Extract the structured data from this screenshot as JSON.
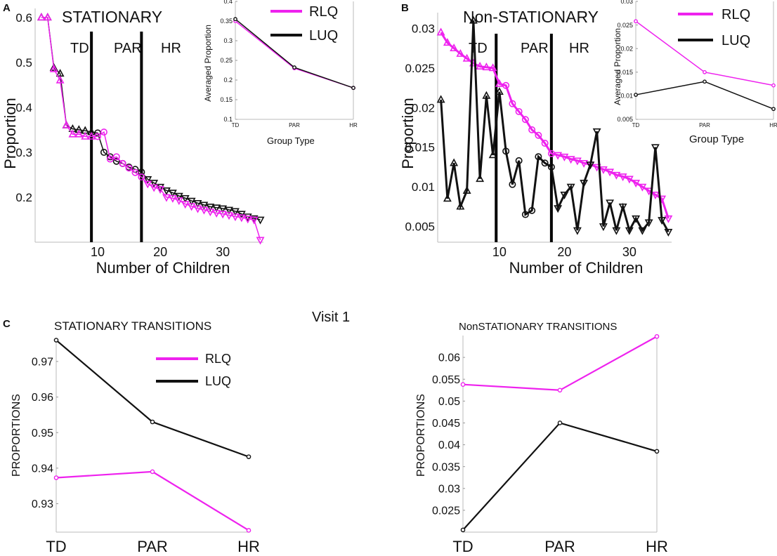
{
  "panel_labels": {
    "a": "A",
    "b": "B",
    "c": "C"
  },
  "figure_title": "Visit 1",
  "colors": {
    "rlq": "#ee22ee",
    "luq": "#111111",
    "axis": "#bbbbbb"
  },
  "chart_data": [
    {
      "id": "A-main",
      "type": "line",
      "title": "STATIONARY",
      "xlabel": "Number of Children",
      "ylabel": "Proportion",
      "xlim": [
        0,
        36.5
      ],
      "ylim": [
        0.1,
        0.62
      ],
      "xticks": [
        10,
        20,
        30
      ],
      "yticks": [
        0.2,
        0.3,
        0.4,
        0.5,
        0.6
      ],
      "ytick_labels": [
        "0.2",
        "0.3",
        "0.4",
        "0.5",
        "0.6"
      ],
      "group_labels": [
        "TD",
        "PAR",
        "HR"
      ],
      "group_boundaries": [
        9,
        17
      ],
      "x": [
        1,
        2,
        3,
        4,
        5,
        6,
        7,
        8,
        9,
        10,
        11,
        12,
        13,
        14,
        15,
        16,
        17,
        18,
        19,
        20,
        21,
        22,
        23,
        24,
        25,
        26,
        27,
        28,
        29,
        30,
        31,
        32,
        33,
        34,
        35,
        36
      ],
      "series": [
        {
          "name": "LUQ",
          "values": [
            0.6,
            0.6,
            0.488,
            0.475,
            0.36,
            0.352,
            0.35,
            0.348,
            0.345,
            0.343,
            0.3,
            0.29,
            0.28,
            0.275,
            0.267,
            0.262,
            0.256,
            0.24,
            0.232,
            0.223,
            0.215,
            0.21,
            0.203,
            0.198,
            0.192,
            0.187,
            0.183,
            0.179,
            0.177,
            0.175,
            0.172,
            0.169,
            0.163,
            0.157,
            0.153,
            0.15
          ]
        },
        {
          "name": "RLQ",
          "values": [
            0.6,
            0.6,
            0.485,
            0.46,
            0.36,
            0.34,
            0.34,
            0.335,
            0.335,
            0.335,
            0.345,
            0.285,
            0.29,
            0.275,
            0.265,
            0.255,
            0.245,
            0.23,
            0.222,
            0.218,
            0.2,
            0.198,
            0.193,
            0.185,
            0.18,
            0.175,
            0.172,
            0.168,
            0.165,
            0.163,
            0.16,
            0.157,
            0.155,
            0.152,
            0.15,
            0.105
          ]
        }
      ]
    },
    {
      "id": "A-inset",
      "type": "line",
      "xlabel": "Group Type",
      "ylabel": "Averaged Proportion",
      "categories": [
        "TD",
        "PAR",
        "HR"
      ],
      "ylim": [
        0.1,
        0.4
      ],
      "yticks": [
        0.1,
        0.15,
        0.2,
        0.25,
        0.3,
        0.35,
        0.4
      ],
      "ytick_labels": [
        "0.1",
        "0.15",
        "0.2",
        "0.25",
        "0.3",
        "0.35",
        "0.4"
      ],
      "series": [
        {
          "name": "RLQ",
          "values": [
            0.35,
            0.23,
            0.18
          ]
        },
        {
          "name": "LUQ",
          "values": [
            0.355,
            0.232,
            0.18
          ]
        }
      ]
    },
    {
      "id": "B-main",
      "type": "line",
      "title": "Non-STATIONARY",
      "xlabel": "Number of Children",
      "ylabel": "Proportion",
      "xlim": [
        0.5,
        36.5
      ],
      "ylim": [
        0.003,
        0.032
      ],
      "xticks": [
        10,
        20,
        30
      ],
      "yticks": [
        0.005,
        0.01,
        0.015,
        0.02,
        0.025,
        0.03
      ],
      "ytick_labels": [
        "0.005",
        "0.01",
        "0.015",
        "0.02",
        "0.025",
        "0.03"
      ],
      "group_labels": [
        "TD",
        "PAR",
        "HR"
      ],
      "group_boundaries": [
        9.5,
        18
      ],
      "x": [
        1,
        2,
        3,
        4,
        5,
        6,
        7,
        8,
        9,
        10,
        11,
        12,
        13,
        14,
        15,
        16,
        17,
        18,
        19,
        20,
        21,
        22,
        23,
        24,
        25,
        26,
        27,
        28,
        29,
        30,
        31,
        32,
        33,
        34,
        35,
        36
      ],
      "series": [
        {
          "name": "RLQ",
          "values": [
            0.0295,
            0.0282,
            0.0275,
            0.0268,
            0.0262,
            0.0256,
            0.0252,
            0.0251,
            0.025,
            0.023,
            0.0228,
            0.0205,
            0.0195,
            0.0185,
            0.0172,
            0.0165,
            0.0155,
            0.0142,
            0.014,
            0.0138,
            0.0135,
            0.0133,
            0.013,
            0.0128,
            0.0125,
            0.0122,
            0.0119,
            0.0115,
            0.0113,
            0.011,
            0.0105,
            0.01,
            0.0095,
            0.009,
            0.0085,
            0.006
          ]
        },
        {
          "name": "LUQ",
          "values": [
            0.021,
            0.0085,
            0.013,
            0.0075,
            0.0095,
            0.031,
            0.011,
            0.0215,
            0.014,
            0.022,
            0.0145,
            0.0103,
            0.0133,
            0.0065,
            0.007,
            0.0138,
            0.013,
            0.0125,
            0.0073,
            0.009,
            0.01,
            0.0045,
            0.0105,
            0.0128,
            0.017,
            0.005,
            0.008,
            0.0045,
            0.0075,
            0.0045,
            0.006,
            0.0045,
            0.0055,
            0.015,
            0.0058,
            0.0043
          ]
        }
      ]
    },
    {
      "id": "B-inset",
      "type": "line",
      "xlabel": "Group Type",
      "ylabel": "Averaged Proportion",
      "categories": [
        "TD",
        "PAR",
        "HR"
      ],
      "ylim": [
        0.005,
        0.03
      ],
      "yticks": [
        0.005,
        0.01,
        0.015,
        0.02,
        0.025,
        0.03
      ],
      "ytick_labels": [
        "0.005",
        "0.01",
        "0.015",
        "0.02",
        "0.025",
        "0.03"
      ],
      "series": [
        {
          "name": "RLQ",
          "values": [
            0.0258,
            0.015,
            0.0122
          ]
        },
        {
          "name": "LUQ",
          "values": [
            0.0102,
            0.013,
            0.0072
          ]
        }
      ]
    },
    {
      "id": "C-left",
      "type": "line",
      "title": "STATIONARY TRANSITIONS",
      "ylabel": "PROPORTIONS",
      "categories": [
        "TD",
        "PAR",
        "HR"
      ],
      "ylim": [
        0.922,
        0.9765
      ],
      "yticks": [
        0.93,
        0.94,
        0.95,
        0.96,
        0.97
      ],
      "ytick_labels": [
        "0.93",
        "0.94",
        "0.95",
        "0.96",
        "0.97"
      ],
      "series": [
        {
          "name": "RLQ",
          "values": [
            0.9373,
            0.939,
            0.9225
          ]
        },
        {
          "name": "LUQ",
          "values": [
            0.976,
            0.953,
            0.9432
          ]
        }
      ]
    },
    {
      "id": "C-right",
      "type": "line",
      "title": "NonSTATIONARY TRANSITIONS",
      "ylabel": "PROPORTIONS",
      "categories": [
        "TD",
        "PAR",
        "HR"
      ],
      "ylim": [
        0.02,
        0.065
      ],
      "yticks": [
        0.025,
        0.03,
        0.035,
        0.04,
        0.045,
        0.05,
        0.055,
        0.06
      ],
      "ytick_labels": [
        "0.025",
        "0.03",
        "0.035",
        "0.04",
        "0.045",
        "0.05",
        "0.055",
        "0.06"
      ],
      "series": [
        {
          "name": "RLQ",
          "values": [
            0.0538,
            0.0525,
            0.0648
          ]
        },
        {
          "name": "LUQ",
          "values": [
            0.0205,
            0.045,
            0.0385
          ]
        }
      ]
    }
  ]
}
